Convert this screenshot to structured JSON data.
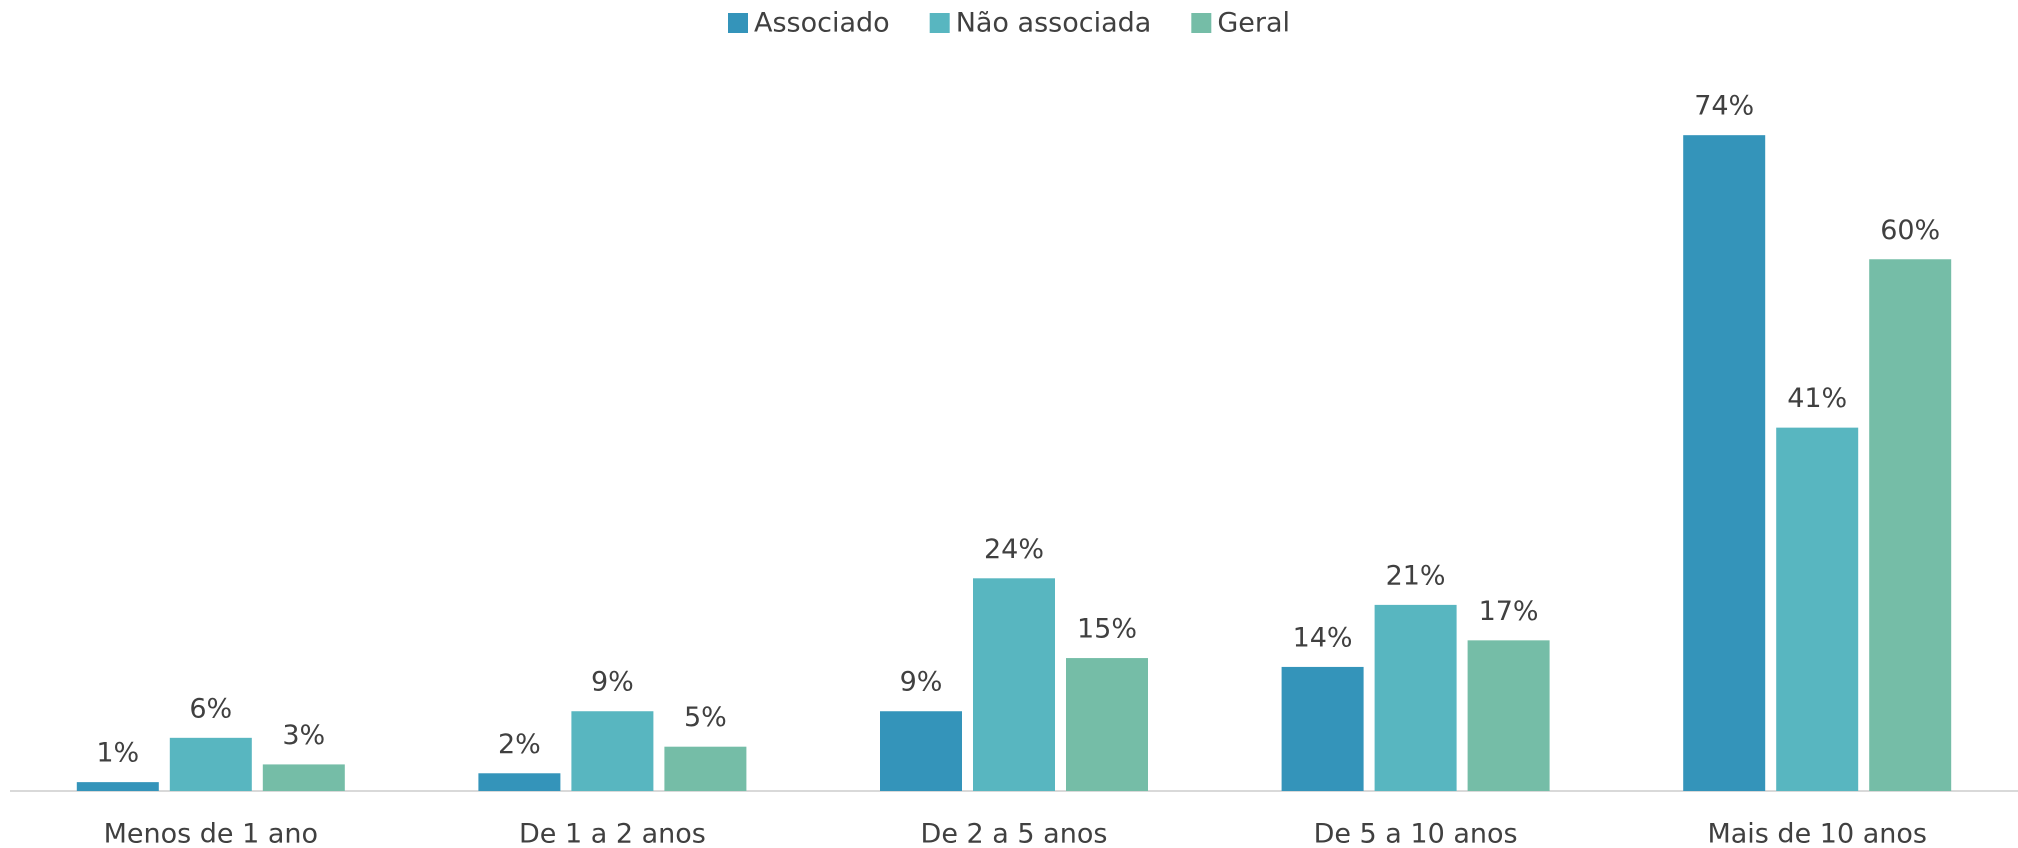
{
  "chart_data": {
    "type": "bar",
    "categories": [
      "Menos de 1 ano",
      "De 1 a 2 anos",
      "De 2 a 5 anos",
      "De 5 a 10 anos",
      "Mais de 10 anos"
    ],
    "series": [
      {
        "name": "Associado",
        "color": "#3494ba",
        "values": [
          1,
          2,
          9,
          14,
          74
        ],
        "value_labels": [
          "1%",
          "2%",
          "9%",
          "14%",
          "74%"
        ]
      },
      {
        "name": "Não associada",
        "color": "#58b6c0",
        "values": [
          6,
          9,
          24,
          21,
          41
        ],
        "value_labels": [
          "6%",
          "9%",
          "24%",
          "21%",
          "41%"
        ]
      },
      {
        "name": "Geral",
        "color": "#75bda7",
        "values": [
          3,
          5,
          15,
          17,
          60
        ],
        "value_labels": [
          "3%",
          "5%",
          "15%",
          "17%",
          "60%"
        ]
      }
    ],
    "ylim": [
      0,
      80
    ],
    "legend": "top"
  }
}
